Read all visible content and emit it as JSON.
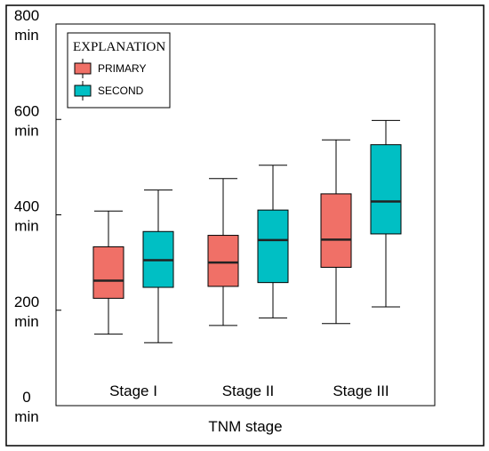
{
  "chart_data": {
    "type": "box",
    "xlabel": "TNM stage",
    "ylabel": "",
    "ylim": [
      0,
      800
    ],
    "yticks": [
      {
        "value": 0,
        "line1": "0",
        "line2": "min"
      },
      {
        "value": 200,
        "line1": "200",
        "line2": "min"
      },
      {
        "value": 400,
        "line1": "400",
        "line2": "min"
      },
      {
        "value": 600,
        "line1": "600",
        "line2": "min"
      },
      {
        "value": 800,
        "line1": "800",
        "line2": "min"
      }
    ],
    "categories": [
      "Stage I",
      "Stage II",
      "Stage III"
    ],
    "legend": {
      "title": "EXPLANATION",
      "position": "top-left"
    },
    "series": [
      {
        "name": "PRIMARY",
        "color": "#f07067",
        "boxes": [
          {
            "min": 150,
            "q1": 225,
            "median": 262,
            "q3": 333,
            "max": 408
          },
          {
            "min": 168,
            "q1": 250,
            "median": 300,
            "q3": 357,
            "max": 476
          },
          {
            "min": 172,
            "q1": 290,
            "median": 348,
            "q3": 444,
            "max": 557
          }
        ]
      },
      {
        "name": "SECOND",
        "color": "#00bfc4",
        "boxes": [
          {
            "min": 132,
            "q1": 248,
            "median": 305,
            "q3": 365,
            "max": 452
          },
          {
            "min": 184,
            "q1": 258,
            "median": 347,
            "q3": 410,
            "max": 504
          },
          {
            "min": 207,
            "q1": 360,
            "median": 428,
            "q3": 547,
            "max": 598
          }
        ]
      }
    ]
  }
}
